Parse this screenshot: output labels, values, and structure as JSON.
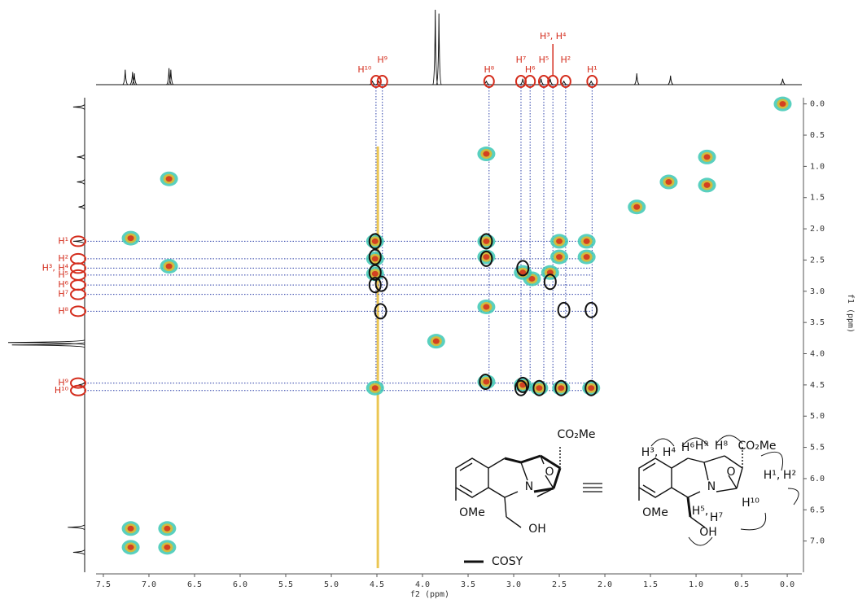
{
  "chart_data": {
    "type": "contour",
    "x_label": "f2 (ppm)",
    "y_label": "f1 (ppm)",
    "xlim": [
      7.58,
      -0.16
    ],
    "ylim": [
      -0.1,
      7.5
    ],
    "xticks": [
      7.5,
      {
        "value": 7.0,
        "label": "7.0"
      },
      6.5,
      {
        "value": 6.0,
        "label": "6.0"
      },
      5.5,
      {
        "value": 5.0,
        "label": "5.0"
      },
      4.5,
      {
        "value": 4.0,
        "label": "4.0"
      },
      3.5,
      {
        "value": 3.0,
        "label": "3.0"
      },
      2.5,
      {
        "value": 2.0,
        "label": "2.0"
      },
      1.5,
      {
        "value": 1.0,
        "label": "1.0"
      },
      0.5,
      {
        "value": 0.0,
        "label": "0.0"
      }
    ],
    "yticks": [
      {
        "value": 0.0,
        "label": "0.0"
      },
      0.5,
      {
        "value": 1.0,
        "label": "1.0"
      },
      1.5,
      {
        "value": 2.0,
        "label": "2.0"
      },
      2.5,
      {
        "value": 3.0,
        "label": "3.0"
      },
      3.5,
      {
        "value": 4.0,
        "label": "4.0"
      },
      4.5,
      {
        "value": 5.0,
        "label": "5.0"
      },
      5.5,
      {
        "value": 6.0,
        "label": "6.0"
      },
      6.5,
      {
        "value": 7.0,
        "label": "7.0"
      }
    ],
    "peak_colors": [
      "#3cc8b4",
      "#e6b828",
      "#d42c1c"
    ],
    "cross_peaks": {
      "f2": [
        6.78,
        7.2,
        6.78,
        4.52,
        3.85,
        7.2,
        7.2,
        6.8,
        6.8,
        3.3,
        3.3,
        3.3,
        2.5,
        2.2,
        2.2,
        2.5,
        2.8,
        2.6,
        2.9,
        1.3,
        0.88,
        0.88,
        0.05,
        1.65,
        3.3,
        4.52,
        4.52,
        4.52,
        2.72,
        2.48,
        2.15,
        2.9,
        3.3
      ],
      "f1": [
        1.2,
        2.15,
        2.6,
        4.55,
        3.8,
        6.8,
        7.1,
        6.8,
        7.1,
        2.2,
        2.45,
        3.25,
        2.2,
        2.2,
        2.45,
        2.45,
        2.8,
        2.7,
        2.7,
        1.25,
        0.85,
        1.3,
        0.0,
        1.65,
        0.8,
        2.2,
        2.48,
        2.72,
        4.55,
        4.55,
        4.55,
        4.5,
        4.45
      ]
    },
    "noise_ridge_f2": 4.49,
    "correlations": {
      "f2": [
        4.52,
        4.52,
        4.52,
        4.52,
        4.45,
        4.46,
        3.3,
        3.3,
        2.9,
        2.6,
        2.45,
        2.15,
        3.31,
        2.92,
        2.9,
        2.72,
        2.48,
        2.15
      ],
      "f1": [
        2.2,
        2.45,
        2.7,
        2.9,
        2.88,
        3.32,
        2.2,
        2.48,
        2.63,
        2.85,
        3.3,
        3.3,
        4.45,
        4.55,
        4.5,
        4.55,
        4.55,
        4.55
      ]
    },
    "assignments": [
      {
        "label": "H¹",
        "f2": 2.14,
        "f1": 2.2
      },
      {
        "label": "H²",
        "f2": 2.43,
        "f1": 2.48
      },
      {
        "label": "H³, H⁴",
        "f2": 2.57,
        "f1": 2.63
      },
      {
        "label": "H⁵",
        "f2": 2.67,
        "f1": 2.74
      },
      {
        "label": "H⁶",
        "f2": 2.82,
        "f1": 2.9
      },
      {
        "label": "H⁷",
        "f2": 2.92,
        "f1": 3.05
      },
      {
        "label": "H⁸",
        "f2": 3.27,
        "f1": 3.32
      },
      {
        "label": "H⁹",
        "f2": 4.44,
        "f1": 4.47
      },
      {
        "label": "H¹⁰",
        "f2": 4.51,
        "f1": 4.59
      }
    ],
    "top_projection": {
      "f2": [
        7.26,
        7.18,
        7.16,
        6.78,
        6.76,
        4.55,
        4.48,
        3.86,
        3.82,
        3.3,
        2.9,
        2.7,
        2.6,
        2.45,
        2.15,
        1.65,
        1.28,
        0.05
      ],
      "height": [
        20,
        17,
        15,
        22,
        20,
        5,
        5,
        100,
        95,
        5,
        8,
        8,
        8,
        5,
        5,
        15,
        12,
        8
      ]
    },
    "left_projection": {
      "f1": [
        0.05,
        0.85,
        1.25,
        1.65,
        2.2,
        3.82,
        3.86,
        4.5,
        6.78,
        7.18
      ],
      "height": [
        15,
        10,
        10,
        8,
        15,
        100,
        95,
        8,
        22,
        15
      ]
    },
    "structure_labels": [
      "CO₂Me",
      "N",
      "O",
      "OMe",
      "OH"
    ],
    "structure_h_labels": [
      "H³,",
      "H⁴",
      "H⁶",
      "H⁹",
      "H⁸",
      "CO₂Me",
      "H¹,",
      "H²",
      "H⁵,",
      "H⁷",
      "H¹⁰",
      "N",
      "O",
      "OMe",
      "OH"
    ],
    "legend": "COSY"
  }
}
